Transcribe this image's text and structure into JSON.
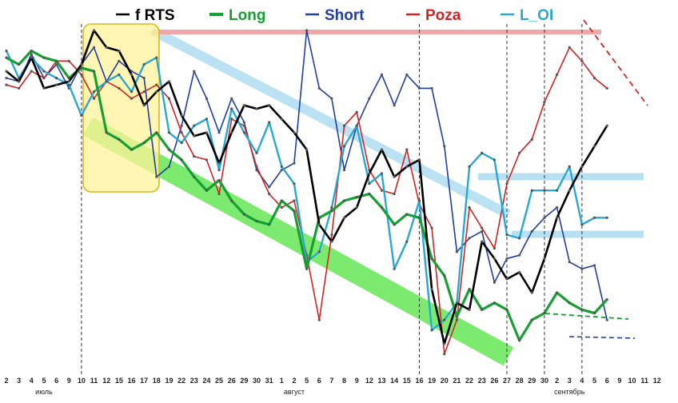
{
  "chart_data": {
    "type": "line",
    "title": "",
    "xlabel": "",
    "ylabel": "",
    "ylim": [
      0,
      100
    ],
    "grid": false,
    "legend_position": "top",
    "x_ticks": [
      "2",
      "3",
      "4",
      "5",
      "6",
      "9",
      "10",
      "11",
      "12",
      "15",
      "16",
      "17",
      "18",
      "19",
      "22",
      "23",
      "24",
      "25",
      "26",
      "29",
      "30",
      "31",
      "1",
      "2",
      "5",
      "6",
      "7",
      "8",
      "9",
      "12",
      "13",
      "14",
      "15",
      "16",
      "19",
      "20",
      "21",
      "22",
      "23",
      "26",
      "27",
      "28",
      "29",
      "30",
      "2",
      "3",
      "4",
      "5",
      "6",
      "9",
      "10",
      "11",
      "12"
    ],
    "month_labels": [
      {
        "text": "июль",
        "at_index": 3
      },
      {
        "text": "август",
        "at_index": 23
      },
      {
        "text": "сентябрь",
        "at_index": 45
      }
    ],
    "dividers_at_index": [
      6,
      33,
      40,
      43,
      46
    ],
    "series": [
      {
        "name": "f RTS",
        "color": "#000000",
        "width": 2.6,
        "values": [
          88,
          85,
          92,
          83,
          84,
          85,
          90,
          100,
          95,
          94,
          87,
          78,
          82,
          85,
          75,
          69,
          70,
          61,
          70,
          78,
          77,
          78,
          74,
          70,
          65,
          43,
          38,
          45,
          48,
          58,
          65,
          57,
          60,
          62,
          24,
          8,
          20,
          18,
          38,
          33,
          27,
          29,
          23,
          33,
          45,
          53,
          60,
          66,
          72,
          null,
          null,
          null,
          null
        ]
      },
      {
        "name": "Long",
        "color": "#169f33",
        "width": 3.2,
        "values": [
          92,
          90,
          94,
          92,
          91,
          86,
          89,
          88,
          70,
          68,
          65,
          67,
          70,
          65,
          62,
          57,
          53,
          56,
          50,
          46,
          44,
          43,
          50,
          47,
          30,
          45,
          47,
          50,
          51,
          52,
          48,
          43,
          46,
          45,
          33,
          28,
          16,
          24,
          18,
          20,
          18,
          9,
          15,
          17,
          23,
          20,
          18,
          17,
          21,
          null,
          null,
          null,
          null
        ]
      },
      {
        "name": "Short",
        "color": "#1f3fa4",
        "width": 1.6,
        "values": [
          86,
          85,
          93,
          86,
          90,
          83,
          90,
          95,
          85,
          91,
          88,
          86,
          57,
          60,
          72,
          88,
          80,
          70,
          80,
          73,
          59,
          54,
          59,
          61,
          100,
          83,
          80,
          59,
          72,
          80,
          87,
          78,
          87,
          83,
          83,
          66,
          35,
          39,
          41,
          26,
          33,
          34,
          41,
          45,
          48,
          32,
          30,
          31,
          15,
          null,
          null,
          null,
          null
        ]
      },
      {
        "name": "Poza",
        "color": "#d42323",
        "width": 1.6,
        "values": [
          84,
          83,
          88,
          86,
          91,
          91,
          87,
          80,
          85,
          83,
          80,
          82,
          84,
          80,
          70,
          63,
          62,
          52,
          74,
          72,
          60,
          52,
          48,
          50,
          34,
          15,
          40,
          72,
          76,
          59,
          53,
          52,
          65,
          49,
          42,
          5,
          15,
          48,
          42,
          36,
          55,
          64,
          68,
          79,
          87,
          95,
          91,
          86,
          83,
          null,
          null,
          null,
          null
        ]
      },
      {
        "name": "L_OI",
        "color": "#28a8d3",
        "width": 2.4,
        "values": [
          94,
          86,
          92,
          88,
          86,
          84,
          75,
          82,
          85,
          87,
          82,
          90,
          92,
          70,
          67,
          72,
          74,
          59,
          77,
          70,
          64,
          73,
          60,
          55,
          32,
          35,
          48,
          66,
          72,
          55,
          58,
          30,
          38,
          50,
          12,
          15,
          20,
          60,
          64,
          62,
          40,
          39,
          53,
          53,
          53,
          60,
          43,
          45,
          45,
          null,
          null,
          null,
          null
        ]
      }
    ]
  },
  "legend": [
    {
      "label": "f RTS",
      "color": "#000000"
    },
    {
      "label": "Long",
      "color": "#169f33"
    },
    {
      "label": "Short",
      "color": "#1f3fa4"
    },
    {
      "label": "Poza",
      "color": "#d42323"
    },
    {
      "label": "L_OI",
      "color": "#28a8d3"
    }
  ]
}
